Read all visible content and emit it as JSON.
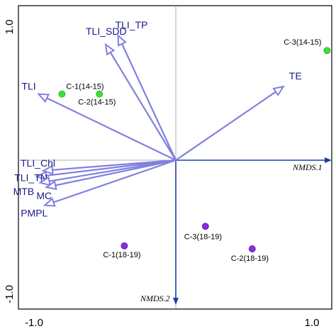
{
  "chart_data": {
    "type": "scatter",
    "xlim": [
      -1.0,
      1.0
    ],
    "ylim": [
      -1.0,
      1.0
    ],
    "x_ticks": [
      "-1.0",
      "1.0"
    ],
    "y_ticks": [
      "1.0",
      "-1.0"
    ],
    "axis_names": {
      "x": "NMDS.1",
      "y": "NMDS.2"
    },
    "colors": {
      "vector": "#8080e0",
      "axis": "#1f3fa0",
      "label": "#1a1a8c",
      "group_14_15": "#3ce03c",
      "group_18_19": "#8a2be2"
    },
    "vectors": [
      {
        "name": "TLI_TP",
        "x": -0.37,
        "y": 0.83
      },
      {
        "name": "TLI_SDD",
        "x": -0.45,
        "y": 0.77
      },
      {
        "name": "TLI",
        "x": -0.88,
        "y": 0.44
      },
      {
        "name": "TE",
        "x": 0.69,
        "y": 0.49
      },
      {
        "name": "TLI_Chl",
        "x": -0.85,
        "y": -0.07
      },
      {
        "name": "TLI_TN",
        "x": -0.89,
        "y": -0.11
      },
      {
        "name": "MC",
        "x": -0.83,
        "y": -0.18
      },
      {
        "name": "MTB",
        "x": -0.87,
        "y": -0.15
      },
      {
        "name": "PMPL",
        "x": -0.84,
        "y": -0.3
      }
    ],
    "series": [
      {
        "group": "14-15",
        "points": [
          {
            "label": "C-1(14-15)",
            "x": -0.73,
            "y": 0.44
          },
          {
            "label": "C-2(14-15)",
            "x": -0.49,
            "y": 0.44
          },
          {
            "label": "C-3(14-15)",
            "x": 0.97,
            "y": 0.73
          }
        ]
      },
      {
        "group": "18-19",
        "points": [
          {
            "label": "C-3(18-19)",
            "x": 0.19,
            "y": -0.44
          },
          {
            "label": "C-1(18-19)",
            "x": -0.33,
            "y": -0.57
          },
          {
            "label": "C-2(18-19)",
            "x": 0.49,
            "y": -0.59
          }
        ]
      }
    ]
  }
}
